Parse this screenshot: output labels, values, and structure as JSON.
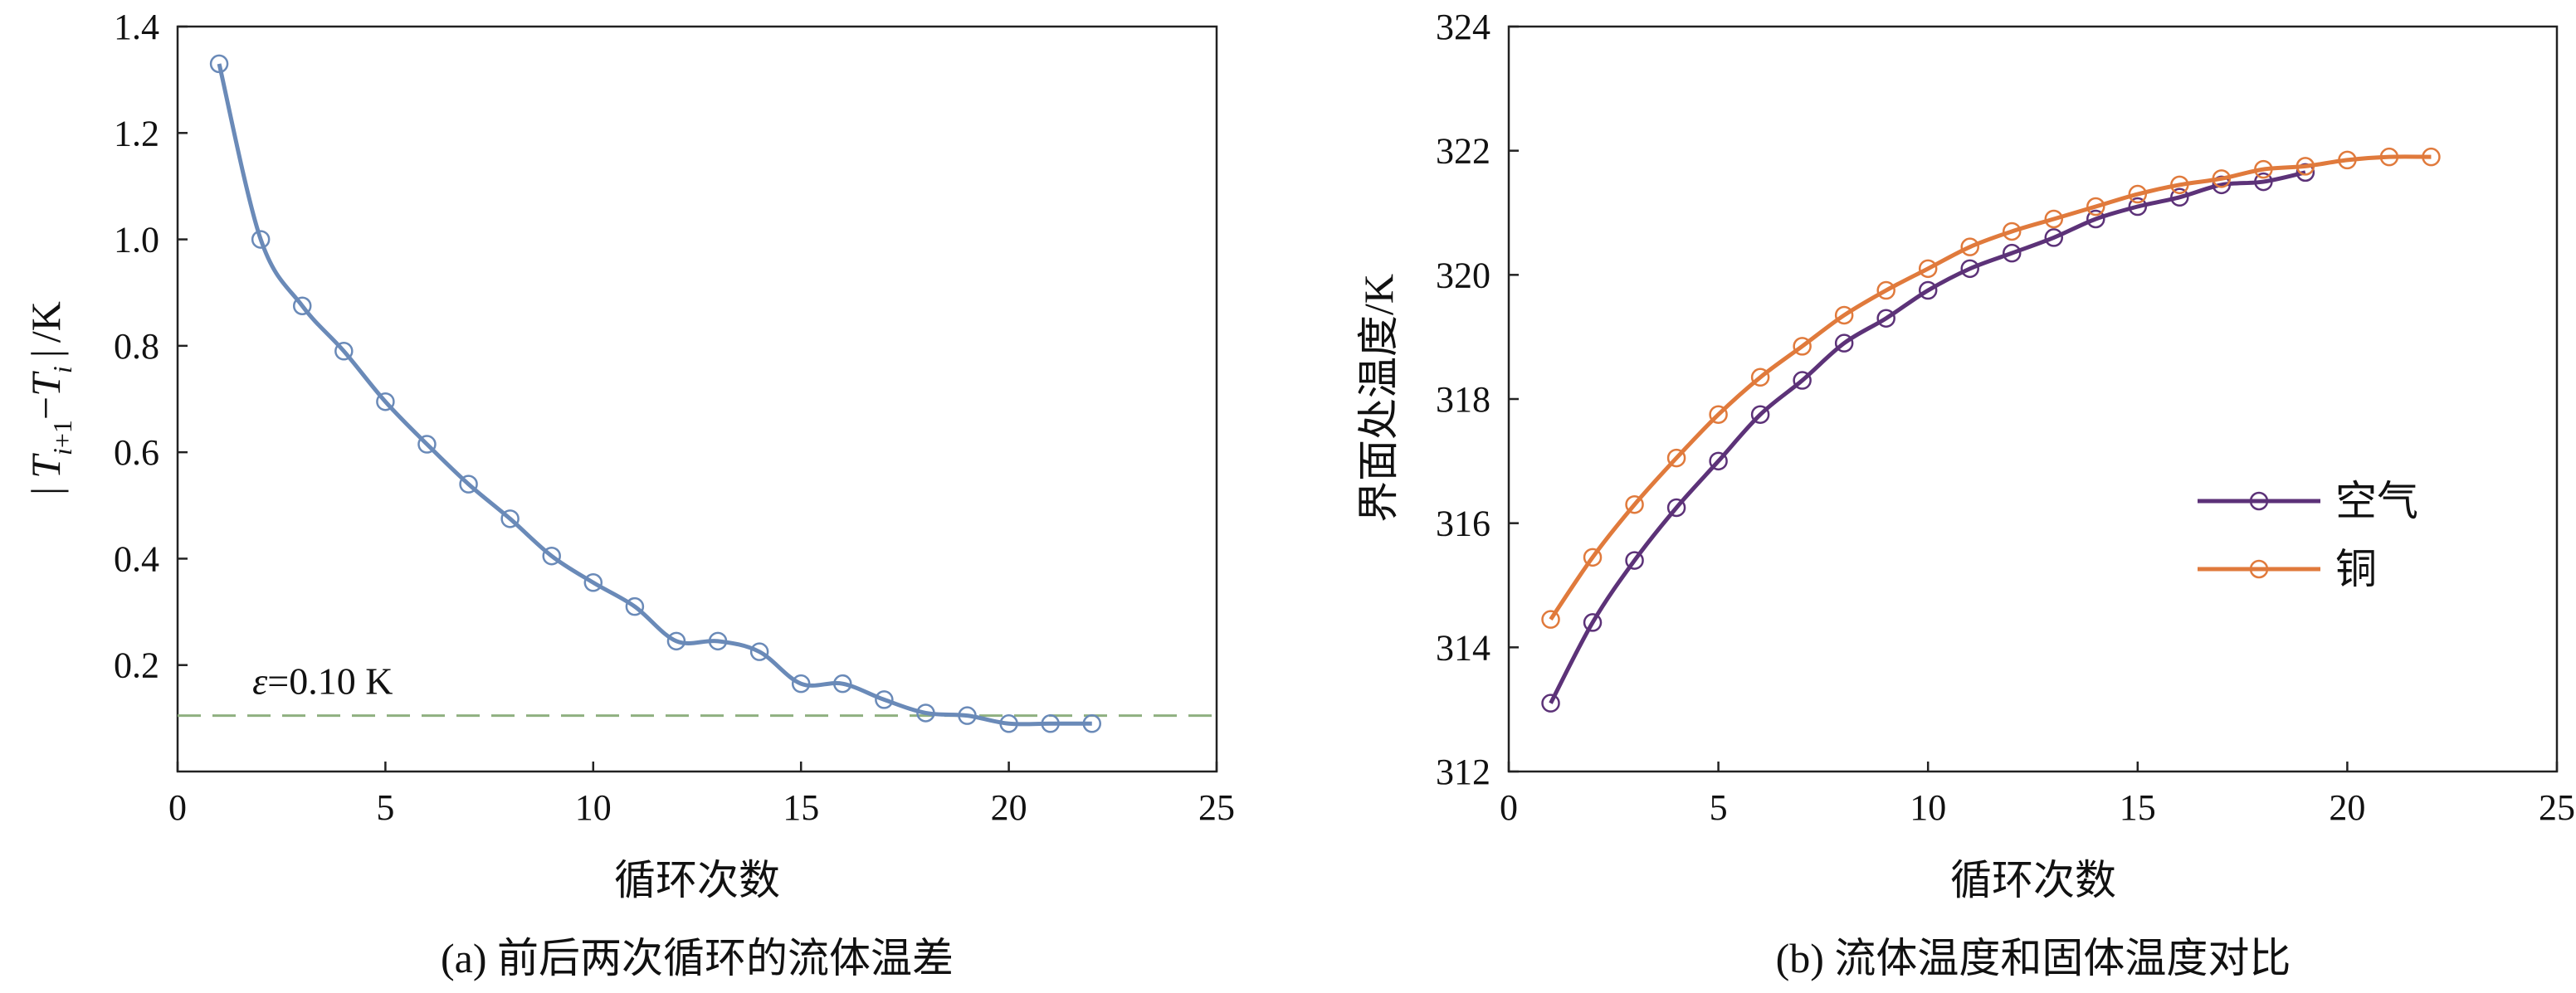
{
  "chart_data": [
    {
      "type": "line",
      "caption": "(a) 前后两次循环的流体温差",
      "xlabel": "循环次数",
      "ylabel": "|T_{i+1}−T_i|/K",
      "xlim": [
        0,
        25
      ],
      "ylim": [
        0,
        1.4
      ],
      "xticks": [
        0,
        5,
        10,
        15,
        20,
        25
      ],
      "yticks": [
        0.2,
        0.4,
        0.6,
        0.8,
        1.0,
        1.2,
        1.4
      ],
      "ytick_labels": [
        "0.2",
        "0.4",
        "0.6",
        "0.8",
        "1.0",
        "1.2",
        "1.4"
      ],
      "series": [
        {
          "color": "#6a8ab8",
          "marker": "open-circle",
          "x": [
            1,
            2,
            3,
            4,
            5,
            6,
            7,
            8,
            9,
            10,
            11,
            12,
            13,
            14,
            15,
            16,
            17,
            18,
            19,
            20,
            21,
            22
          ],
          "y": [
            1.33,
            1.0,
            0.875,
            0.79,
            0.695,
            0.615,
            0.54,
            0.475,
            0.405,
            0.355,
            0.31,
            0.245,
            0.245,
            0.225,
            0.165,
            0.165,
            0.135,
            0.11,
            0.105,
            0.09,
            0.09,
            0.09
          ]
        }
      ],
      "threshold": {
        "value": 0.105,
        "color": "#8fb080",
        "label": "ε=0.10 K"
      }
    },
    {
      "type": "line",
      "caption": "(b) 流体温度和固体温度对比",
      "xlabel": "循环次数",
      "ylabel": "界面处温度/K",
      "xlim": [
        0,
        25
      ],
      "ylim": [
        312,
        324
      ],
      "xticks": [
        0,
        5,
        10,
        15,
        20,
        25
      ],
      "yticks": [
        312,
        314,
        316,
        318,
        320,
        322,
        324
      ],
      "legend_position": "right-middle",
      "series": [
        {
          "name": "空气",
          "color": "#5c3278",
          "marker": "open-circle",
          "x": [
            1,
            2,
            3,
            4,
            5,
            6,
            7,
            8,
            9,
            10,
            11,
            12,
            13,
            14,
            15,
            16,
            17,
            18,
            19
          ],
          "y": [
            313.1,
            314.4,
            315.4,
            316.25,
            317.0,
            317.75,
            318.3,
            318.9,
            319.3,
            319.75,
            320.1,
            320.35,
            320.6,
            320.9,
            321.1,
            321.25,
            321.45,
            321.5,
            321.65
          ]
        },
        {
          "name": "铜",
          "color": "#e07a3c",
          "marker": "open-circle",
          "x": [
            1,
            2,
            3,
            4,
            5,
            6,
            7,
            8,
            9,
            10,
            11,
            12,
            13,
            14,
            15,
            16,
            17,
            18,
            19,
            20,
            21,
            22
          ],
          "y": [
            314.45,
            315.45,
            316.3,
            317.05,
            317.75,
            318.35,
            318.85,
            319.35,
            319.75,
            320.1,
            320.45,
            320.7,
            320.9,
            321.1,
            321.3,
            321.45,
            321.55,
            321.7,
            321.75,
            321.85,
            321.9,
            321.9
          ]
        }
      ]
    }
  ]
}
